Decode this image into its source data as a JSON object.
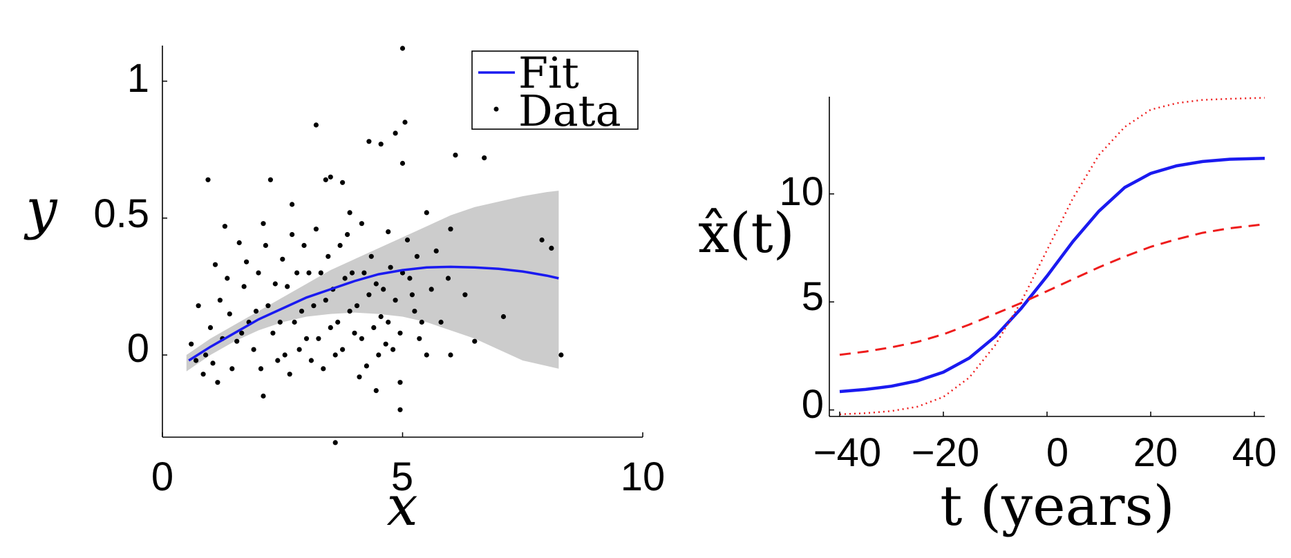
{
  "chart_data": [
    {
      "type": "scatter",
      "xlabel": "x",
      "ylabel": "y",
      "xlim": [
        0,
        10
      ],
      "ylim": [
        -0.3,
        1.13
      ],
      "xticks": [
        "0",
        "5",
        "10"
      ],
      "yticks": [
        "0",
        "0.5",
        "1"
      ],
      "grid": false,
      "legend": {
        "placement": "top-center",
        "entries": [
          "Fit",
          "Data"
        ]
      },
      "band_color": "#cccccc",
      "fit_color": "#1a1af0",
      "point_color": "#000000",
      "band": {
        "x": [
          0.5,
          1,
          1.5,
          2,
          2.5,
          3,
          3.5,
          4,
          4.5,
          5,
          5.5,
          6,
          6.5,
          7,
          7.5,
          8,
          8.25
        ],
        "lower": [
          -0.06,
          0.0,
          0.05,
          0.09,
          0.12,
          0.14,
          0.15,
          0.155,
          0.15,
          0.14,
          0.12,
          0.09,
          0.06,
          0.02,
          -0.02,
          -0.04,
          -0.05
        ],
        "upper": [
          0.0,
          0.06,
          0.11,
          0.16,
          0.21,
          0.26,
          0.31,
          0.35,
          0.39,
          0.43,
          0.47,
          0.51,
          0.54,
          0.56,
          0.58,
          0.595,
          0.6
        ]
      },
      "series": [
        {
          "name": "Fit",
          "x": [
            0.55,
            1,
            1.5,
            2,
            2.5,
            3,
            3.5,
            4,
            4.5,
            5,
            5.5,
            6,
            6.5,
            7,
            7.5,
            8,
            8.25
          ],
          "y": [
            -0.02,
            0.03,
            0.08,
            0.13,
            0.17,
            0.21,
            0.24,
            0.27,
            0.295,
            0.31,
            0.32,
            0.322,
            0.32,
            0.315,
            0.305,
            0.29,
            0.28
          ]
        },
        {
          "name": "Data",
          "points": [
            [
              5.0,
              1.12
            ],
            [
              3.2,
              0.84
            ],
            [
              5.05,
              0.85
            ],
            [
              4.85,
              0.81
            ],
            [
              4.55,
              0.77
            ],
            [
              4.3,
              0.78
            ],
            [
              6.1,
              0.73
            ],
            [
              6.7,
              0.72
            ],
            [
              5.0,
              0.7
            ],
            [
              0.95,
              0.64
            ],
            [
              2.25,
              0.64
            ],
            [
              3.4,
              0.64
            ],
            [
              3.5,
              0.65
            ],
            [
              3.75,
              0.63
            ],
            [
              1.3,
              0.47
            ],
            [
              5.5,
              0.52
            ],
            [
              6.0,
              0.46
            ],
            [
              7.9,
              0.42
            ],
            [
              8.1,
              0.39
            ],
            [
              7.1,
              0.14
            ],
            [
              8.3,
              0.0
            ],
            [
              6.5,
              0.05
            ],
            [
              6.0,
              0.0
            ],
            [
              5.5,
              0.0
            ],
            [
              4.95,
              -0.1
            ],
            [
              4.95,
              -0.2
            ],
            [
              3.6,
              -0.32
            ],
            [
              4.45,
              -0.13
            ],
            [
              2.1,
              -0.15
            ],
            [
              1.15,
              -0.1
            ],
            [
              0.85,
              -0.07
            ],
            [
              2.65,
              -0.07
            ],
            [
              6.3,
              0.22
            ],
            [
              5.95,
              0.28
            ],
            [
              5.7,
              0.38
            ],
            [
              5.3,
              0.36
            ],
            [
              5.1,
              0.42
            ],
            [
              4.7,
              0.45
            ],
            [
              4.15,
              0.48
            ],
            [
              3.9,
              0.52
            ],
            [
              2.7,
              0.55
            ],
            [
              2.1,
              0.48
            ],
            [
              1.6,
              0.41
            ],
            [
              1.1,
              0.33
            ],
            [
              0.75,
              0.18
            ],
            [
              0.6,
              0.04
            ],
            [
              0.7,
              -0.02
            ],
            [
              1.0,
              0.1
            ],
            [
              1.2,
              0.2
            ],
            [
              1.4,
              0.15
            ],
            [
              1.55,
              0.05
            ],
            [
              1.7,
              0.25
            ],
            [
              1.8,
              0.12
            ],
            [
              1.9,
              0.02
            ],
            [
              2.0,
              0.3
            ],
            [
              2.2,
              0.18
            ],
            [
              2.3,
              0.08
            ],
            [
              2.4,
              -0.02
            ],
            [
              2.5,
              0.35
            ],
            [
              2.6,
              0.25
            ],
            [
              2.75,
              0.12
            ],
            [
              2.85,
              0.02
            ],
            [
              2.95,
              0.4
            ],
            [
              3.05,
              0.3
            ],
            [
              3.15,
              0.18
            ],
            [
              3.25,
              0.06
            ],
            [
              3.35,
              -0.05
            ],
            [
              3.45,
              0.36
            ],
            [
              3.55,
              0.24
            ],
            [
              3.65,
              0.12
            ],
            [
              3.75,
              0.02
            ],
            [
              3.85,
              0.44
            ],
            [
              3.95,
              0.3
            ],
            [
              4.05,
              0.18
            ],
            [
              4.15,
              0.06
            ],
            [
              4.25,
              -0.04
            ],
            [
              4.35,
              0.36
            ],
            [
              4.45,
              0.26
            ],
            [
              4.55,
              0.14
            ],
            [
              4.65,
              0.04
            ],
            [
              4.75,
              0.32
            ],
            [
              4.85,
              0.2
            ],
            [
              4.95,
              0.08
            ],
            [
              5.15,
              0.28
            ],
            [
              5.25,
              0.16
            ],
            [
              5.35,
              0.06
            ],
            [
              5.6,
              0.24
            ],
            [
              5.8,
              0.12
            ],
            [
              0.9,
              0.0
            ],
            [
              1.05,
              -0.03
            ],
            [
              1.25,
              0.06
            ],
            [
              1.35,
              0.28
            ],
            [
              1.45,
              -0.05
            ],
            [
              1.65,
              0.08
            ],
            [
              1.75,
              0.34
            ],
            [
              1.95,
              0.16
            ],
            [
              2.05,
              -0.05
            ],
            [
              2.15,
              0.4
            ],
            [
              2.35,
              0.26
            ],
            [
              2.45,
              0.12
            ],
            [
              2.55,
              0.0
            ],
            [
              2.7,
              0.44
            ],
            [
              2.8,
              0.3
            ],
            [
              2.9,
              0.16
            ],
            [
              3.0,
              0.06
            ],
            [
              3.1,
              -0.02
            ],
            [
              3.2,
              0.46
            ],
            [
              3.3,
              0.3
            ],
            [
              3.4,
              0.2
            ],
            [
              3.5,
              0.1
            ],
            [
              3.6,
              0.0
            ],
            [
              3.7,
              0.4
            ],
            [
              3.8,
              0.28
            ],
            [
              3.9,
              0.16
            ],
            [
              4.0,
              0.08
            ],
            [
              4.1,
              -0.08
            ],
            [
              4.2,
              0.3
            ],
            [
              4.3,
              0.22
            ],
            [
              4.4,
              0.1
            ],
            [
              4.5,
              0.0
            ],
            [
              4.6,
              0.24
            ],
            [
              4.7,
              0.12
            ],
            [
              4.8,
              0.02
            ],
            [
              5.0,
              0.3
            ],
            [
              5.2,
              0.22
            ],
            [
              5.4,
              0.12
            ]
          ]
        }
      ]
    },
    {
      "type": "line",
      "xlabel": "t (years)",
      "ylabel": "x̂(t)",
      "xlim": [
        -42,
        42
      ],
      "ylim": [
        -0.3,
        14.5
      ],
      "xticks": [
        "−40",
        "−20",
        "0",
        "20",
        "40"
      ],
      "yticks": [
        "0",
        "5",
        "10"
      ],
      "grid": false,
      "series": [
        {
          "style": "solid",
          "color": "#1a1af0",
          "x": [
            -40,
            -35,
            -30,
            -25,
            -20,
            -15,
            -10,
            -5,
            0,
            5,
            10,
            15,
            20,
            25,
            30,
            35,
            42
          ],
          "y": [
            0.85,
            0.95,
            1.1,
            1.35,
            1.75,
            2.4,
            3.4,
            4.7,
            6.2,
            7.8,
            9.2,
            10.3,
            10.95,
            11.3,
            11.5,
            11.6,
            11.65
          ]
        },
        {
          "style": "dashed",
          "color": "#ee1c1c",
          "x": [
            -40,
            -35,
            -30,
            -25,
            -20,
            -15,
            -10,
            -5,
            0,
            5,
            10,
            15,
            20,
            25,
            30,
            35,
            42
          ],
          "y": [
            2.55,
            2.7,
            2.9,
            3.15,
            3.5,
            3.95,
            4.45,
            4.95,
            5.5,
            6.05,
            6.6,
            7.1,
            7.55,
            7.9,
            8.2,
            8.4,
            8.6
          ]
        },
        {
          "style": "dotted",
          "color": "#ee1c1c",
          "x": [
            -40,
            -35,
            -30,
            -25,
            -20,
            -15,
            -10,
            -5,
            0,
            5,
            10,
            15,
            20,
            25,
            30,
            35,
            42
          ],
          "y": [
            -0.2,
            -0.15,
            -0.05,
            0.15,
            0.6,
            1.5,
            3.0,
            5.0,
            7.4,
            9.8,
            11.8,
            13.1,
            13.9,
            14.2,
            14.35,
            14.4,
            14.45
          ]
        }
      ]
    }
  ]
}
